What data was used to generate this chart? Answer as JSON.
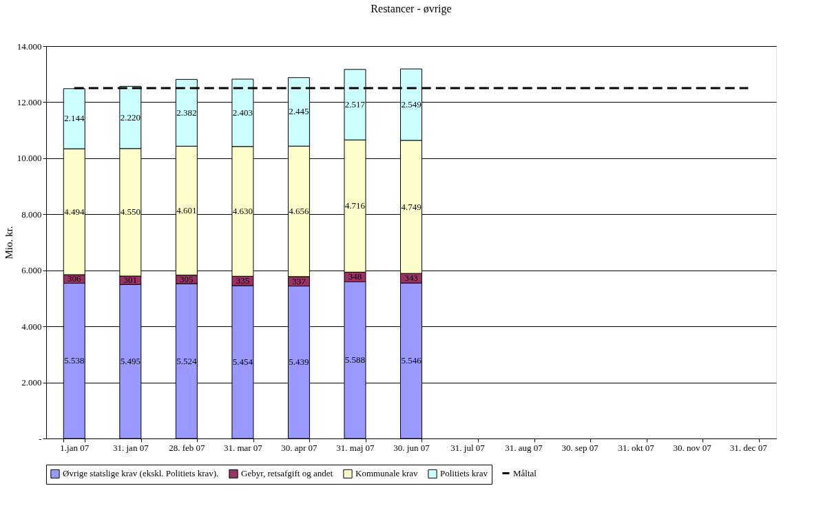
{
  "chart_data": {
    "type": "bar",
    "title": "Restancer - øvrige",
    "ylabel": "Mio. kr.",
    "stacked": true,
    "categories": [
      "1.jan 07",
      "31. jan 07",
      "28. feb 07",
      "31. mar 07",
      "30. apr 07",
      "31. maj 07",
      "30. jun 07",
      "31. jul 07",
      "31. aug 07",
      "30. sep 07",
      "31. okt 07",
      "30. nov 07",
      "31. dec 07"
    ],
    "series": [
      {
        "name": "Øvrige statslige krav (ekskl. Politiets krav).",
        "color": "#9999ff",
        "values": [
          5538,
          5495,
          5524,
          5454,
          5439,
          5588,
          5546,
          null,
          null,
          null,
          null,
          null,
          null
        ],
        "value_labels": [
          "5.538",
          "5.495",
          "5.524",
          "5.454",
          "5.439",
          "5.588",
          "5.546",
          null,
          null,
          null,
          null,
          null,
          null
        ]
      },
      {
        "name": "Gebyr, retsafgift og andet",
        "color": "#993366",
        "values": [
          306,
          301,
          305,
          335,
          337,
          348,
          343,
          null,
          null,
          null,
          null,
          null,
          null
        ],
        "value_labels": [
          "306",
          "301",
          "305",
          "335",
          "337",
          "348",
          "343",
          null,
          null,
          null,
          null,
          null,
          null
        ]
      },
      {
        "name": "Kommunale krav",
        "color": "#ffffcc",
        "values": [
          4494,
          4550,
          4601,
          4630,
          4656,
          4716,
          4749,
          null,
          null,
          null,
          null,
          null,
          null
        ],
        "value_labels": [
          "4.494",
          "4.550",
          "4.601",
          "4.630",
          "4.656",
          "4.716",
          "4.749",
          null,
          null,
          null,
          null,
          null,
          null
        ]
      },
      {
        "name": "Politiets krav",
        "color": "#ccffff",
        "values": [
          2144,
          2220,
          2382,
          2403,
          2445,
          2517,
          2549,
          null,
          null,
          null,
          null,
          null,
          null
        ],
        "value_labels": [
          "2.144",
          "2.220",
          "2.382",
          "2.403",
          "2.445",
          "2.517",
          "2.549",
          null,
          null,
          null,
          null,
          null,
          null
        ]
      },
      {
        "name": "Måltal",
        "type": "line",
        "line_style": "dashed",
        "color": "#000000",
        "values": [
          12500,
          12500,
          12500,
          12500,
          12500,
          12500,
          12500,
          12500,
          12500,
          12500,
          12500,
          12500,
          12500
        ]
      }
    ],
    "ylim": [
      0,
      14000
    ],
    "yticks": [
      {
        "value": 0,
        "label": "-"
      },
      {
        "value": 2000,
        "label": "2.000"
      },
      {
        "value": 4000,
        "label": "4.000"
      },
      {
        "value": 6000,
        "label": "6.000"
      },
      {
        "value": 8000,
        "label": "8.000"
      },
      {
        "value": 10000,
        "label": "10.000"
      },
      {
        "value": 12000,
        "label": "12.000"
      },
      {
        "value": 14000,
        "label": "14.000"
      }
    ],
    "grid": "y",
    "legend": "bottom"
  }
}
